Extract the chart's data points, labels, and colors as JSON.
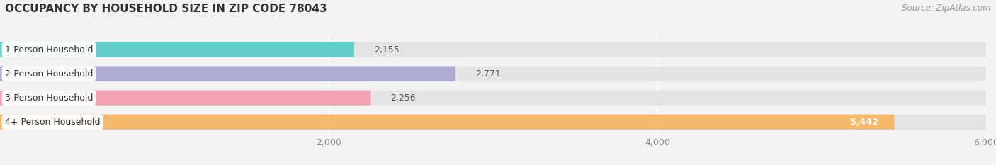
{
  "title": "OCCUPANCY BY HOUSEHOLD SIZE IN ZIP CODE 78043",
  "source": "Source: ZipAtlas.com",
  "categories": [
    "1-Person Household",
    "2-Person Household",
    "3-Person Household",
    "4+ Person Household"
  ],
  "values": [
    2155,
    2771,
    2256,
    5442
  ],
  "bar_colors": [
    "#62CECA",
    "#ABABD6",
    "#F2A0B2",
    "#F5B96B"
  ],
  "xlim": [
    0,
    6000
  ],
  "xticks": [
    2000,
    4000,
    6000
  ],
  "xtick_labels": [
    "2,000",
    "4,000",
    "6,000"
  ],
  "bg_color": "#f2f2f2",
  "bar_bg_color": "#e4e4e4",
  "bar_height": 0.62,
  "figsize": [
    14.06,
    2.33
  ],
  "dpi": 100,
  "title_fontsize": 11,
  "source_fontsize": 8.5,
  "label_fontsize": 9,
  "value_fontsize": 9
}
